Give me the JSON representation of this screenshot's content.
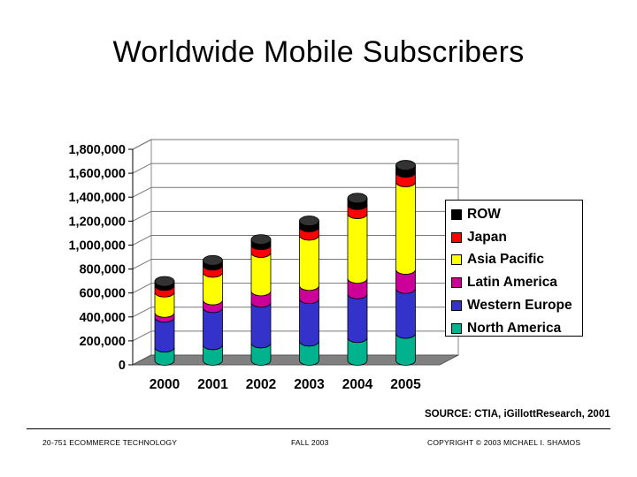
{
  "slide": {
    "title": "Worldwide Mobile Subscribers",
    "source": "SOURCE: CTIA, iGillottResearch, 2001"
  },
  "footer": {
    "left": "20-751 ECOMMERCE TECHNOLOGY",
    "center": "FALL 2003",
    "right": "COPYRIGHT © 2003 MICHAEL I. SHAMOS"
  },
  "chart_data": {
    "type": "bar",
    "stacked": true,
    "three_d": true,
    "title": "Worldwide Mobile Subscribers",
    "xlabel": "",
    "ylabel": "",
    "ylim": [
      0,
      1800000
    ],
    "yticks": [
      0,
      200000,
      400000,
      600000,
      800000,
      1000000,
      1200000,
      1400000,
      1600000,
      1800000
    ],
    "ytick_labels": [
      "0",
      "200,000",
      "400,000",
      "600,000",
      "800,000",
      "1,000,000",
      "1,200,000",
      "1,400,000",
      "1,600,000",
      "1,800,000"
    ],
    "categories": [
      "2000",
      "2001",
      "2002",
      "2003",
      "2004",
      "2005"
    ],
    "grid": true,
    "legend_position": "right",
    "series": [
      {
        "name": "North America",
        "color": "#00b38f",
        "values": [
          110000,
          130000,
          145000,
          160000,
          190000,
          225000
        ]
      },
      {
        "name": "Western Europe",
        "color": "#3333cc",
        "values": [
          250000,
          310000,
          340000,
          355000,
          365000,
          375000
        ]
      },
      {
        "name": "Latin America",
        "color": "#cc0099",
        "values": [
          40000,
          65000,
          95000,
          110000,
          130000,
          160000
        ]
      },
      {
        "name": "Asia Pacific",
        "color": "#ffff00",
        "values": [
          170000,
          230000,
          320000,
          420000,
          540000,
          730000
        ]
      },
      {
        "name": "Japan",
        "color": "#ff0000",
        "values": [
          55000,
          60000,
          65000,
          70000,
          75000,
          80000
        ]
      },
      {
        "name": "ROW",
        "color": "#000000",
        "values": [
          35000,
          40000,
          45000,
          50000,
          55000,
          60000
        ]
      }
    ]
  }
}
